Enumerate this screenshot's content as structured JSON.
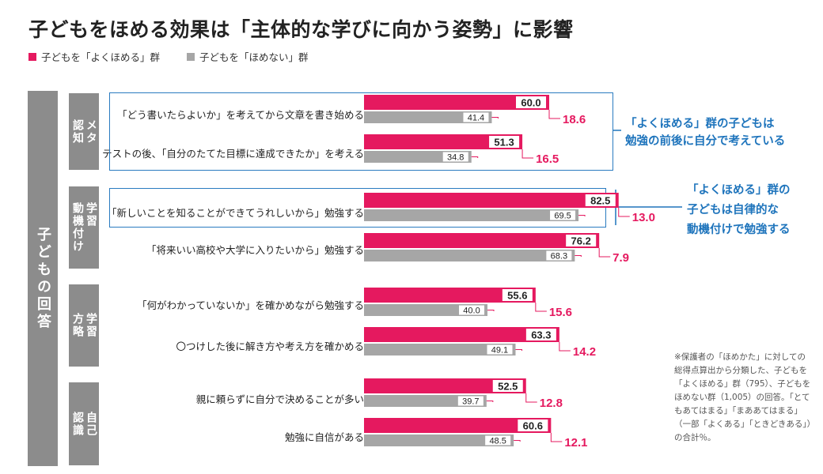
{
  "title": "子どもをほめる効果は「主体的な学びに向かう姿勢」に影響",
  "legend": {
    "praise": "子どもを「よくほめる」群",
    "no_praise": "子どもを「ほめない」群"
  },
  "side_label": "子どもの回答",
  "categories": {
    "meta": "メタ\n認知",
    "motivation": "学習\n動機付け",
    "method": "学習\n方略",
    "self": "自己\n認識"
  },
  "callouts": {
    "c1_line1": "「よくほめる」群の子どもは",
    "c1_line2": "勉強の前後に自分で考えている",
    "c2_line1": "「よくほめる」群の",
    "c2_line2": "子どもは自律的な",
    "c2_line3": "動機付けで勉強する"
  },
  "note": "※保護者の「ほめかた」に対しての総得点算出から分類した、子どもを「よくほめる」群（795）、子どもをほめない群（1,005）の回答。「とてもあてはまる」「まああてはまる」（一部「よくある」「ときどきある」）の合計％。",
  "colors": {
    "praise": "#e5195f",
    "no_praise": "#a6a6a6",
    "callout": "#1e74bc",
    "panel": "#8c8c8c"
  },
  "chart_data": {
    "type": "bar",
    "orientation": "horizontal",
    "categories": [
      "「どう書いたらよいか」を考えてから文章を書き始める",
      "テストの後、「自分のたてた目標に達成できたか」を考える",
      "「新しいことを知ることができてうれしいから」勉強する",
      "「将来いい高校や大学に入りたいから」勉強する",
      "「何がわかっていないか」を確かめながら勉強する",
      "〇つけした後に解き方や考え方を確かめる",
      "親に頼らずに自分で決めることが多い",
      "勉強に自信がある"
    ],
    "series": [
      {
        "name": "子どもを「よくほめる」群",
        "values": [
          60.0,
          51.3,
          82.5,
          76.2,
          55.6,
          63.3,
          52.5,
          60.6
        ]
      },
      {
        "name": "子どもを「ほめない」群",
        "values": [
          41.4,
          34.8,
          69.5,
          68.3,
          40.0,
          49.1,
          39.7,
          48.5
        ]
      }
    ],
    "differences": [
      "18.6",
      "16.5",
      "13.0",
      "7.9",
      "15.6",
      "14.2",
      "12.8",
      "12.1"
    ],
    "value_labels_praise": [
      "60.0",
      "51.3",
      "82.5",
      "76.2",
      "55.6",
      "63.3",
      "52.5",
      "60.6"
    ],
    "value_labels_no_praise": [
      "41.4",
      "34.8",
      "69.5",
      "68.3",
      "40.0",
      "49.1",
      "39.7",
      "48.5"
    ]
  }
}
